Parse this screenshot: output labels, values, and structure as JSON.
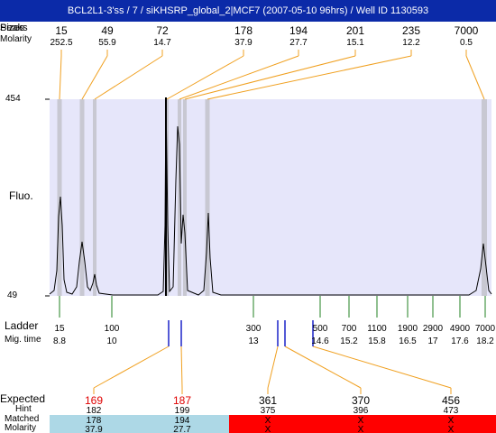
{
  "title": "BCL2L1-3'ss / 7 / siKHSRP_global_2|MCF7 (2007-05-10 96hrs) / Well ID 1130593",
  "row_labels": {
    "peaks": "Peaks",
    "sizes": "Sizes",
    "molarity": "Molarity",
    "fluo": "Fluo.",
    "ladder": "Ladder",
    "mig_time": "Mig. time",
    "expected": "Expected",
    "hint": "Hint",
    "matched": "Matched",
    "molarity_bottom": "Molarity"
  },
  "y_axis": {
    "top": "454",
    "bottom": "49"
  },
  "peaks": [
    {
      "size": "15",
      "molarity": "252.5",
      "position": 15
    },
    {
      "size": "49",
      "molarity": "55.9",
      "position": 49
    },
    {
      "size": "72",
      "molarity": "14.7",
      "position": 72
    },
    {
      "size": "178",
      "molarity": "37.9",
      "position": 178
    },
    {
      "size": "194",
      "molarity": "27.7",
      "position": 194
    },
    {
      "size": "201",
      "molarity": "15.1",
      "position": 201
    },
    {
      "size": "235",
      "molarity": "12.2",
      "position": 235
    },
    {
      "size": "7000",
      "molarity": "0.5",
      "position": 7000
    }
  ],
  "ladder": [
    {
      "size": "15",
      "mig": "8.8"
    },
    {
      "size": "100",
      "mig": "10"
    },
    {
      "size": "300",
      "mig": "13"
    },
    {
      "size": "500",
      "mig": "14.6"
    },
    {
      "size": "700",
      "mig": "15.2"
    },
    {
      "size": "1100",
      "mig": "15.8"
    },
    {
      "size": "1900",
      "mig": "16.5"
    },
    {
      "size": "2900",
      "mig": "17"
    },
    {
      "size": "4900",
      "mig": "17.6"
    },
    {
      "size": "7000",
      "mig": "18.2"
    }
  ],
  "expected": [
    {
      "expected": "169",
      "hint": "182",
      "matched": "178",
      "molarity": "37.9",
      "status": "matched",
      "highlight": true
    },
    {
      "expected": "187",
      "hint": "199",
      "matched": "194",
      "molarity": "27.7",
      "status": "matched",
      "highlight": true
    },
    {
      "expected": "361",
      "hint": "375",
      "matched": "X",
      "molarity": "X",
      "status": "unmatched",
      "highlight": false
    },
    {
      "expected": "370",
      "hint": "396",
      "matched": "X",
      "molarity": "X",
      "status": "unmatched",
      "highlight": false
    },
    {
      "expected": "456",
      "hint": "473",
      "matched": "X",
      "molarity": "X",
      "status": "unmatched",
      "highlight": false
    }
  ],
  "colors": {
    "title_bg": "#0b2aa8",
    "plot_bg": "#e6e6fa",
    "peak_band": "#c8c8d2",
    "guide_line": "#f0a020",
    "ladder_tick": "#208020",
    "hint_tick": "#1a22c8",
    "matched_cell": "#add8e6",
    "unmatched_cell": "#ff0000",
    "expected_highlight": "#e00000"
  }
}
